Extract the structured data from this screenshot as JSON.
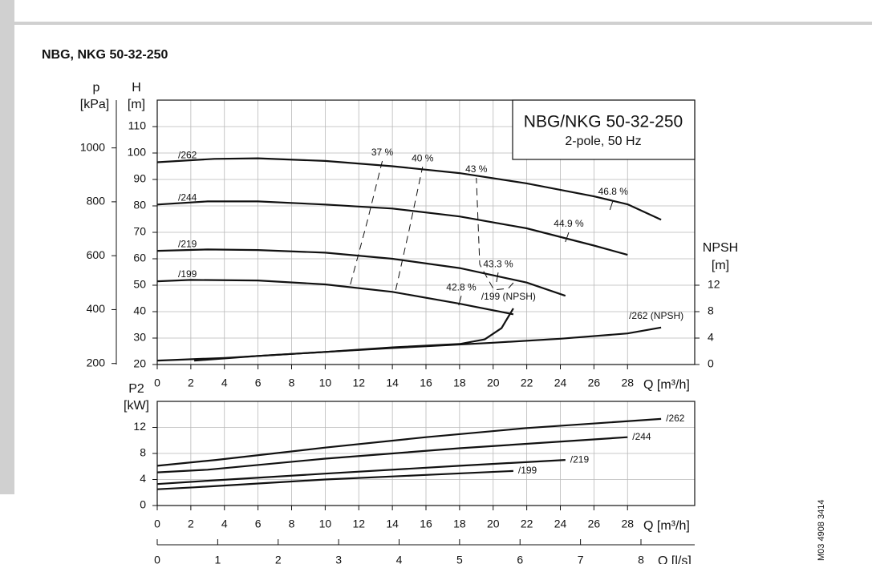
{
  "header": {
    "title": "NBG, NKG 50-32-250"
  },
  "side_code": "M03 4908 3414",
  "chart_data": [
    {
      "type": "line",
      "box_title": "NBG/NKG 50-32-250",
      "box_subtitle": "2-pole, 50 Hz",
      "xlabel": "Q [m³/h]",
      "xlim": [
        0,
        32
      ],
      "xticks": [
        0,
        2,
        4,
        6,
        8,
        10,
        12,
        14,
        16,
        18,
        20,
        22,
        24,
        26,
        28
      ],
      "ylabel": "H",
      "yunit": "[m]",
      "ylim": [
        20,
        120
      ],
      "yticks": [
        20,
        30,
        40,
        50,
        60,
        70,
        80,
        90,
        100,
        110
      ],
      "p_axis": {
        "label": "p",
        "unit": "[kPa]",
        "lim": [
          196.2,
          1177.2
        ],
        "ticks": [
          200,
          400,
          600,
          800,
          1000
        ]
      },
      "y2label": "NPSH",
      "y2unit": "[m]",
      "y2lim": [
        0,
        40
      ],
      "y2ticks": [
        0,
        4,
        8,
        12
      ],
      "grid": true,
      "series": [
        {
          "name": "/262",
          "color": "#111111",
          "x": [
            0,
            3.4,
            6,
            10,
            14,
            18,
            22,
            26,
            28,
            30
          ],
          "values": [
            96.5,
            97.8,
            98,
            97,
            95,
            92.4,
            88.5,
            83.6,
            80.6,
            74.8
          ]
        },
        {
          "name": "/244",
          "color": "#111111",
          "x": [
            0,
            3,
            6,
            10,
            14,
            18,
            22,
            26,
            28
          ],
          "values": [
            80.5,
            81.7,
            81.7,
            80.5,
            79,
            76,
            71.5,
            65,
            61.5
          ]
        },
        {
          "name": "/219",
          "color": "#111111",
          "x": [
            0,
            3,
            6,
            10,
            14,
            18,
            22,
            24.3
          ],
          "values": [
            63,
            63.5,
            63.3,
            62.3,
            60,
            56.5,
            51,
            46
          ]
        },
        {
          "name": "/199",
          "color": "#111111",
          "x": [
            0,
            2,
            6,
            10,
            14,
            18,
            21.2
          ],
          "values": [
            51.5,
            52,
            51.8,
            50.3,
            47.5,
            43,
            39
          ]
        },
        {
          "name": "37 %",
          "color": "#111111",
          "dash": true,
          "x": [
            11.5,
            12.5,
            13.4
          ],
          "values": [
            50.3,
            74,
            97
          ]
        },
        {
          "name": "40 %",
          "color": "#111111",
          "dash": true,
          "x": [
            14.2,
            15,
            15.8
          ],
          "values": [
            48.2,
            71,
            94.8
          ]
        },
        {
          "name": "43 %",
          "color": "#111111",
          "dash": true,
          "x": [
            21.2,
            20.9,
            20.05,
            19.2,
            19
          ],
          "values": [
            50.9,
            48.8,
            48.2,
            57.9,
            90.6
          ]
        },
        {
          "name": "46.8 %",
          "color": "#111111",
          "dash": false,
          "x": [
            26.95,
            27.14
          ],
          "values": [
            78.5,
            82.1
          ]
        },
        {
          "name": "44.9 %",
          "color": "#111111",
          "dash": false,
          "x": [
            24.3,
            24.5
          ],
          "values": [
            66.4,
            70
          ]
        },
        {
          "name": "43.3 %",
          "color": "#111111",
          "dash": false,
          "x": [
            20.2,
            20.3
          ],
          "values": [
            51.2,
            54.8
          ]
        },
        {
          "name": "42.8 %",
          "color": "#111111",
          "dash": false,
          "x": [
            17.95,
            18.1
          ],
          "values": [
            42.4,
            46
          ]
        },
        {
          "name": "/262 (NPSH)",
          "color": "#111111",
          "axis": "y2",
          "x": [
            0,
            4,
            10,
            14,
            20,
            24,
            28,
            30
          ],
          "values": [
            0.6,
            1,
            1.9,
            2.5,
            3.3,
            3.9,
            4.7,
            5.6
          ]
        },
        {
          "name": "/199 (NPSH)",
          "color": "#111111",
          "axis": "y2",
          "x": [
            2.2,
            6,
            10,
            14,
            18,
            19.5,
            20.5,
            21.2
          ],
          "values": [
            0.6,
            1.3,
            1.9,
            2.6,
            3.1,
            3.8,
            5.5,
            8.5
          ]
        }
      ]
    },
    {
      "type": "line",
      "xlabel": "Q [m³/h]",
      "xlim": [
        0,
        32
      ],
      "xticks": [
        0,
        2,
        4,
        6,
        8,
        10,
        12,
        14,
        16,
        18,
        20,
        22,
        24,
        26,
        28
      ],
      "ylabel": "P2",
      "yunit": "[kW]",
      "ylim": [
        0,
        16
      ],
      "yticks": [
        0,
        4,
        8,
        12
      ],
      "grid": true,
      "x2label": "Q [l/s]",
      "x2lim": [
        0,
        8.889
      ],
      "x2ticks": [
        0,
        1,
        2,
        3,
        4,
        5,
        6,
        7,
        8
      ],
      "series": [
        {
          "name": "/262",
          "color": "#111111",
          "x": [
            0,
            3.5,
            10,
            16,
            22,
            30
          ],
          "values": [
            6.1,
            7,
            8.9,
            10.5,
            11.9,
            13.3
          ]
        },
        {
          "name": "/244",
          "color": "#111111",
          "x": [
            0,
            3,
            10,
            18,
            28
          ],
          "values": [
            5.1,
            5.5,
            7.2,
            8.8,
            10.5
          ]
        },
        {
          "name": "/219",
          "color": "#111111",
          "x": [
            0,
            3,
            10,
            18,
            24.3
          ],
          "values": [
            3.3,
            3.8,
            4.9,
            6.1,
            7
          ]
        },
        {
          "name": "/199",
          "color": "#111111",
          "x": [
            0,
            2.2,
            10,
            16,
            21.2
          ],
          "values": [
            2.5,
            2.8,
            4,
            4.7,
            5.3
          ]
        }
      ]
    }
  ]
}
